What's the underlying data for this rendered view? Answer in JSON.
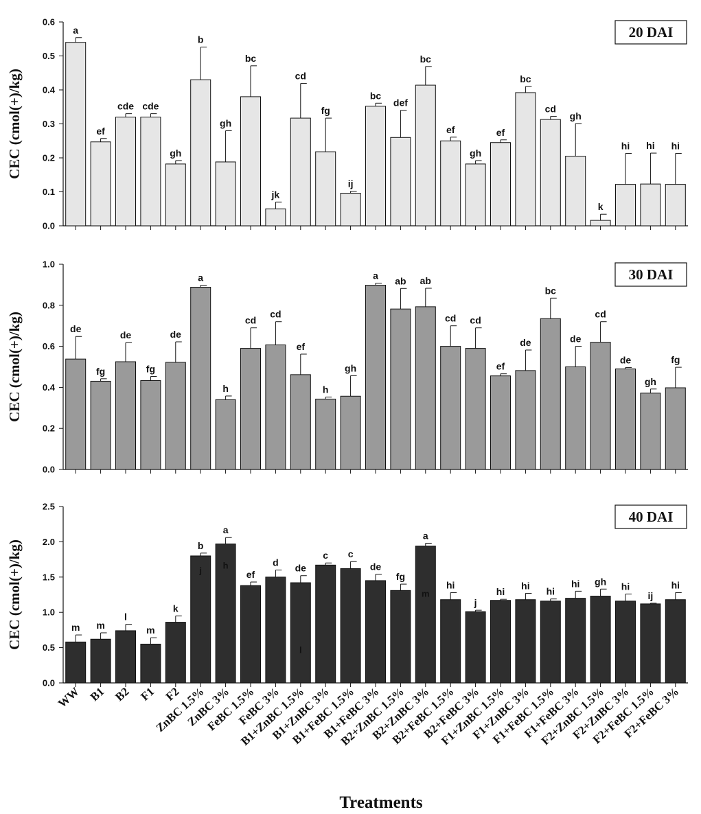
{
  "chart_data": [
    {
      "type": "bar",
      "title": "20 DAI",
      "xlabel": "",
      "ylabel": "CEC (cmol(+)/kg)",
      "ylim": [
        0,
        0.6
      ],
      "yticks": [
        "0.0",
        "0.1",
        "0.2",
        "0.3",
        "0.4",
        "0.5",
        "0.6"
      ],
      "bar_color": "#e6e6e6",
      "categories": [
        "WW",
        "B1",
        "B2",
        "F1",
        "F2",
        "ZnBC 1.5%",
        "ZnBC 3%",
        "FeBC 1.5%",
        "FeBC 3%",
        "B1+ZnBC 1.5%",
        "B1+ZnBC 3%",
        "B1+FeBC 1.5%",
        "B1+FeBC 3%",
        "B2+ZnBC 1.5%",
        "B2+ZnBC 3%",
        "B2+FeBC 1.5%",
        "B2+FeBC 3%",
        "F1+ZnBC 1.5%",
        "F1+ZnBC 3%",
        "F1+FeBC 1.5%",
        "F1+FeBC 3%",
        "F2+ZnBC 1.5%",
        "F2+ZnBC 3%",
        "F2+FeBC 1.5%",
        "F2+FeBC 3%"
      ],
      "values": [
        0.54,
        0.247,
        0.32,
        0.32,
        0.182,
        0.43,
        0.188,
        0.38,
        0.05,
        0.317,
        0.218,
        0.096,
        0.352,
        0.26,
        0.414,
        0.25,
        0.182,
        0.245,
        0.392,
        0.313,
        0.205,
        0.016,
        0.122,
        0.123,
        0.122
      ],
      "errors": [
        0.014,
        0.01,
        0.01,
        0.01,
        0.01,
        0.096,
        0.092,
        0.091,
        0.02,
        0.102,
        0.099,
        0.006,
        0.009,
        0.08,
        0.055,
        0.011,
        0.01,
        0.008,
        0.018,
        0.009,
        0.096,
        0.018,
        0.091,
        0.091,
        0.091
      ],
      "letters": [
        "a",
        "ef",
        "cde",
        "cde",
        "gh",
        "b",
        "gh",
        "bc",
        "jk",
        "cd",
        "fg",
        "ij",
        "bc",
        "def",
        "bc",
        "ef",
        "gh",
        "ef",
        "bc",
        "cd",
        "gh",
        "k",
        "hi",
        "hi",
        "hi"
      ]
    },
    {
      "type": "bar",
      "title": "30 DAI",
      "xlabel": "",
      "ylabel": "CEC (cmol(+)/kg)",
      "ylim": [
        0,
        1.0
      ],
      "yticks": [
        "0.0",
        "0.2",
        "0.4",
        "0.6",
        "0.8",
        "1.0"
      ],
      "bar_color": "#9a9a9a",
      "categories": [
        "WW",
        "B1",
        "B2",
        "F1",
        "F2",
        "ZnBC 1.5%",
        "ZnBC 3%",
        "FeBC 1.5%",
        "FeBC 3%",
        "B1+ZnBC 1.5%",
        "B1+ZnBC 3%",
        "B1+FeBC 1.5%",
        "B1+FeBC 3%",
        "B2+ZnBC 1.5%",
        "B2+ZnBC 3%",
        "B2+FeBC 1.5%",
        "B2+FeBC 3%",
        "F1+ZnBC 1.5%",
        "F1+ZnBC 3%",
        "F1+FeBC 1.5%",
        "F1+FeBC 3%",
        "F2+ZnBC 1.5%",
        "F2+ZnBC 3%",
        "F2+FeBC 1.5%",
        "F2+FeBC 3%"
      ],
      "values": [
        0.538,
        0.43,
        0.525,
        0.433,
        0.522,
        0.888,
        0.34,
        0.59,
        0.607,
        0.462,
        0.343,
        0.357,
        0.898,
        0.782,
        0.793,
        0.6,
        0.59,
        0.456,
        0.482,
        0.735,
        0.5,
        0.62,
        0.49,
        0.372,
        0.398
      ],
      "errors": [
        0.11,
        0.012,
        0.093,
        0.02,
        0.1,
        0.01,
        0.018,
        0.1,
        0.113,
        0.1,
        0.01,
        0.1,
        0.01,
        0.1,
        0.09,
        0.1,
        0.1,
        0.01,
        0.1,
        0.1,
        0.1,
        0.1,
        0.007,
        0.02,
        0.1
      ],
      "letters": [
        "de",
        "fg",
        "de",
        "fg",
        "de",
        "a",
        "h",
        "cd",
        "cd",
        "ef",
        "h",
        "gh",
        "a",
        "ab",
        "ab",
        "cd",
        "cd",
        "ef",
        "de",
        "bc",
        "de",
        "cd",
        "de",
        "gh",
        "fg"
      ]
    },
    {
      "type": "bar",
      "title": "40 DAI",
      "xlabel": "Treatments",
      "ylabel": "CEC (cmol(+)/kg)",
      "ylim": [
        0,
        2.5
      ],
      "yticks": [
        "0.0",
        "0.5",
        "1.0",
        "1.5",
        "2.0",
        "2.5"
      ],
      "bar_color": "#2e2e2e",
      "categories": [
        "WW",
        "B1",
        "B2",
        "F1",
        "F2",
        "ZnBC 1.5%",
        "ZnBC 3%",
        "FeBC 1.5%",
        "FeBC 3%",
        "B1+ZnBC 1.5%",
        "B1+ZnBC 3%",
        "B1+FeBC 1.5%",
        "B1+FeBC 3%",
        "B2+ZnBC 1.5%",
        "B2+ZnBC 3%",
        "B2+FeBC 1.5%",
        "B2+FeBC 3%",
        "F1+ZnBC 1.5%",
        "F1+ZnBC 3%",
        "F1+FeBC 1.5%",
        "F1+FeBC 3%",
        "F2+ZnBC 1.5%",
        "F2+ZnBC 3%",
        "F2+FeBC 1.5%",
        "F2+FeBC 3%"
      ],
      "values": [
        0.58,
        0.62,
        0.74,
        0.55,
        0.86,
        1.8,
        1.97,
        1.38,
        1.5,
        1.42,
        1.67,
        1.62,
        1.45,
        1.31,
        1.94,
        1.18,
        1.01,
        1.17,
        1.18,
        1.16,
        1.2,
        1.23,
        1.16,
        1.12,
        1.18
      ],
      "errors": [
        0.1,
        0.09,
        0.09,
        0.09,
        0.09,
        0.04,
        0.09,
        0.05,
        0.1,
        0.1,
        0.03,
        0.1,
        0.09,
        0.09,
        0.04,
        0.1,
        0.02,
        0.015,
        0.09,
        0.03,
        0.1,
        0.1,
        0.1,
        0.01,
        0.1
      ],
      "letters": [
        "m",
        "m",
        "l",
        "m",
        "k",
        "b",
        "a",
        "ef",
        "d",
        "de",
        "c",
        "c",
        "de",
        "fg",
        "a",
        "hi",
        "j",
        "hi",
        "hi",
        "hi",
        "hi",
        "gh",
        "hi",
        "ij",
        "hi"
      ],
      "inside_letters": [
        {
          "index": 5,
          "value": 1.6,
          "text": "j"
        },
        {
          "index": 6,
          "value": 1.67,
          "text": "h"
        },
        {
          "index": 9,
          "value": 0.47,
          "text": "l"
        },
        {
          "index": 14,
          "value": 1.27,
          "text": "m"
        }
      ]
    }
  ]
}
